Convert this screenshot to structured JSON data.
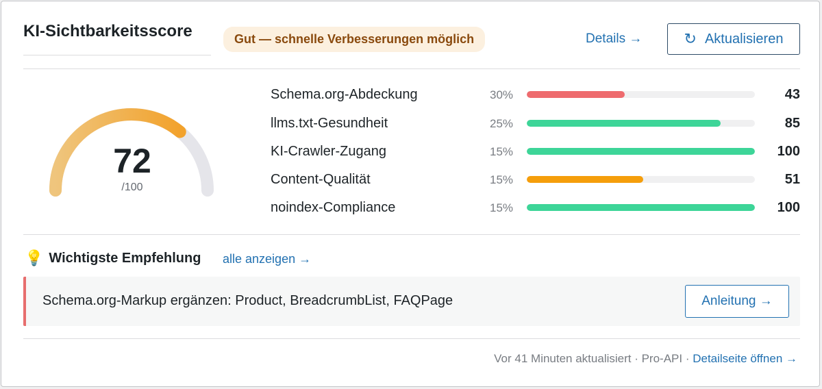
{
  "header": {
    "title": "KI-Sichtbarkeitsscore",
    "badge": "Gut — schnelle Verbesserungen möglich",
    "details_link": "Details →",
    "refresh_icon": "↻",
    "refresh_label": "Aktualisieren"
  },
  "gauge": {
    "score": "72",
    "max_label": "/100",
    "value_fraction": 0.72,
    "colors": {
      "track": "#e5e5ea",
      "start": "#efc57d",
      "end": "#f2a22c"
    }
  },
  "factors": [
    {
      "name": "Schema.org-Abdeckung",
      "weight": "30%",
      "score": "43",
      "value": 43,
      "color": "#ee6b6e"
    },
    {
      "name": "llms.txt-Gesundheit",
      "weight": "25%",
      "score": "85",
      "value": 85,
      "color": "#3dd598"
    },
    {
      "name": "KI-Crawler-Zugang",
      "weight": "15%",
      "score": "100",
      "value": 100,
      "color": "#3dd598"
    },
    {
      "name": "Content-Qualität",
      "weight": "15%",
      "score": "51",
      "value": 51,
      "color": "#f59e0b"
    },
    {
      "name": "noindex-Compliance",
      "weight": "15%",
      "score": "100",
      "value": 100,
      "color": "#3dd598"
    }
  ],
  "recommendation": {
    "icon": "lightbulb-icon",
    "icon_glyph": "💡",
    "title": "Wichtigste Empfehlung",
    "all_link": "alle anzeigen →",
    "text": "Schema.org-Markup ergänzen: Product, BreadcrumbList, FAQPage",
    "guide_button": "Anleitung →",
    "accent_color": "#e76e6e"
  },
  "footer": {
    "meta": "Vor 41 Minuten aktualisiert · Pro-API · ",
    "link": "Detailseite öffnen →"
  }
}
